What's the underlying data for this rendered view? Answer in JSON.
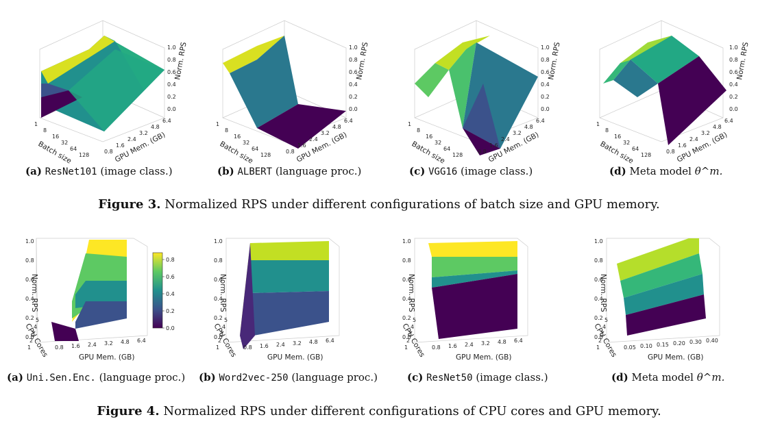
{
  "figure3": {
    "caption_label": "Figure 3.",
    "caption_text": "Normalized RPS under different configurations of batch size and GPU memory.",
    "subfigures": [
      {
        "tag": "(a)",
        "model": "ResNet101",
        "desc": "(image class.)"
      },
      {
        "tag": "(b)",
        "model": "ALBERT",
        "desc": "(language proc.)"
      },
      {
        "tag": "(c)",
        "model": "VGG16",
        "desc": "(image class.)"
      },
      {
        "tag": "(d)",
        "model": "Meta model",
        "desc": "θ^m."
      }
    ],
    "axes": {
      "x_label": "Batch size",
      "y_label": "GPU Mem. (GB)",
      "z_label": "Norm. RPS",
      "x_ticks": [
        "1",
        "8",
        "16",
        "32",
        "64",
        "128"
      ],
      "y_ticks": [
        "0.8",
        "1.6",
        "2.4",
        "3.2",
        "4.8",
        "6.4"
      ],
      "z_ticks": [
        "0.0",
        "0.2",
        "0.4",
        "0.6",
        "0.8",
        "1.0"
      ]
    }
  },
  "figure4": {
    "caption_label": "Figure 4.",
    "caption_text": "Normalized RPS under different configurations of CPU cores and GPU memory.",
    "subfigures": [
      {
        "tag": "(a)",
        "model": "Uni.Sen.Enc.",
        "desc": "(language proc.)"
      },
      {
        "tag": "(b)",
        "model": "Word2vec-250",
        "desc": "(language proc.)"
      },
      {
        "tag": "(c)",
        "model": "ResNet50",
        "desc": "(image class.)"
      },
      {
        "tag": "(d)",
        "model": "Meta model",
        "desc": "θ^m."
      }
    ],
    "axes": {
      "x_label": "CPU Cores",
      "y_label": "GPU Mem. (GB)",
      "z_label": "Norm. RPS",
      "x_ticks": [
        "1",
        "2",
        "3",
        "4",
        "5"
      ],
      "y_ticks": [
        "0.8",
        "1.6",
        "2.4",
        "3.2",
        "4.8",
        "6.4"
      ],
      "y_ticks_meta": [
        "0.05",
        "0.10",
        "0.15",
        "0.20",
        "0.30",
        "0.40"
      ],
      "z_ticks": [
        "0.0",
        "0.2",
        "0.4",
        "0.6",
        "0.8",
        "1.0"
      ]
    },
    "colorbar_ticks": [
      "0.0",
      "0.2",
      "0.4",
      "0.6",
      "0.8"
    ]
  },
  "colors": {
    "viridis": [
      "#440154",
      "#3b528b",
      "#21908d",
      "#5dc963",
      "#fde725"
    ]
  }
}
